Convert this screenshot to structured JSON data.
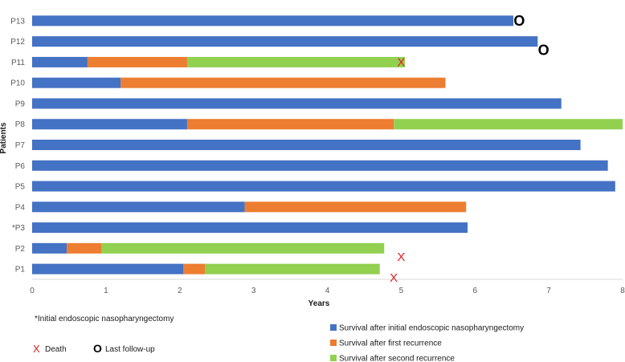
{
  "chart_data": {
    "type": "bar",
    "orientation": "horizontal-stacked",
    "title": "",
    "xlabel": "Years",
    "ylabel": "Patients",
    "xlim": [
      0,
      8
    ],
    "xticks": [
      "0",
      "1",
      "2",
      "3",
      "4",
      "5",
      "6",
      "7",
      "8"
    ],
    "grid": false,
    "categories": [
      "P1",
      "P2",
      "*P3",
      "P4",
      "P5",
      "P6",
      "P7",
      "P8",
      "P9",
      "P10",
      "P11",
      "P12",
      "P13"
    ],
    "series": [
      {
        "name": "Survival after initial endoscopic nasopharyngectomy",
        "color": "#4472c4",
        "values": [
          2.05,
          0.47,
          5.9,
          2.88,
          7.9,
          7.8,
          7.43,
          2.1,
          7.17,
          1.2,
          0.75,
          6.85,
          6.52
        ]
      },
      {
        "name": "Survival after first recurrence",
        "color": "#ed7d31",
        "values": [
          0.29,
          0.47,
          0,
          3.0,
          0,
          0,
          0,
          2.8,
          0,
          4.4,
          1.35,
          0,
          0
        ]
      },
      {
        "name": "Survival after second recurrence",
        "color": "#92d050",
        "values": [
          2.37,
          3.83,
          0,
          0,
          0,
          0,
          0,
          3.1,
          0,
          0,
          2.95,
          0,
          0
        ]
      }
    ],
    "annotations": [
      {
        "patient": "P1",
        "symbol": "X",
        "meaning": "Death",
        "year": 4.9,
        "offset": "below"
      },
      {
        "patient": "P2",
        "symbol": "X",
        "meaning": "Death",
        "year": 5.0,
        "offset": "below"
      },
      {
        "patient": "P11",
        "symbol": "X",
        "meaning": "Death",
        "year": 5.0,
        "offset": "on"
      },
      {
        "patient": "P12",
        "symbol": "O",
        "meaning": "Last follow-up",
        "year": 6.93,
        "offset": "below"
      },
      {
        "patient": "P13",
        "symbol": "O",
        "meaning": "Last follow-up",
        "year": 6.6,
        "offset": "on"
      }
    ],
    "footnote": "*Initial endoscopic nasopharyngectomy",
    "marker_legend": [
      {
        "symbol": "X",
        "label": "Death",
        "color": "#e02020"
      },
      {
        "symbol": "O",
        "label": "Last follow-up",
        "color": "#000000"
      }
    ],
    "legend_position": "bottom-right"
  }
}
